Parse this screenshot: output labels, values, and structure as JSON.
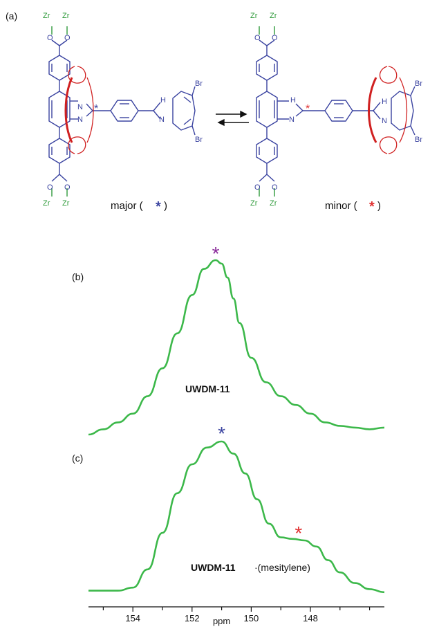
{
  "panels": {
    "a": "(a)",
    "b": "(b)",
    "c": "(c)"
  },
  "scheme": {
    "major_text": "major (",
    "major_close": ")",
    "minor_text": "minor (",
    "minor_close": ")",
    "zr": "Zr",
    "o": "O",
    "n": "N",
    "nh": "H",
    "br": "Br",
    "colors": {
      "framework": "#3a43a0",
      "crown_ether": "#d02020",
      "zirconium": "#2e9a3a"
    }
  },
  "spectra": {
    "b_label": "UWDM-11",
    "c_label": "UWDM-11",
    "c_suffix": "·(mesitylene)",
    "line_color": "#3cb84a",
    "asterisk": "*",
    "asterisk_colors": {
      "b": "#8a2a9a",
      "c_major": "#3a43a0",
      "c_minor": "#e03030"
    }
  },
  "chart_data": [
    {
      "type": "line",
      "panel": "(b)",
      "title": "UWDM-11",
      "xlabel": "ppm",
      "x_reversed": true,
      "xlim": [
        155.5,
        145.5
      ],
      "ticks": [
        154,
        152,
        150,
        148
      ],
      "x": [
        155.5,
        155.0,
        154.5,
        154.0,
        153.5,
        153.0,
        152.5,
        152.0,
        151.6,
        151.2,
        151.0,
        150.8,
        150.6,
        150.4,
        150.0,
        149.5,
        149.0,
        148.5,
        148.0,
        147.5,
        147.0,
        146.5,
        146.0,
        145.5
      ],
      "y": [
        0.0,
        0.03,
        0.07,
        0.12,
        0.22,
        0.38,
        0.58,
        0.8,
        0.95,
        1.0,
        0.98,
        0.9,
        0.78,
        0.64,
        0.44,
        0.3,
        0.22,
        0.17,
        0.12,
        0.07,
        0.05,
        0.04,
        0.03,
        0.04
      ],
      "annotations": [
        {
          "text": "*",
          "x": 151.2,
          "color": "purple"
        }
      ]
    },
    {
      "type": "line",
      "panel": "(c)",
      "title": "UWDM-11·(mesitylene)",
      "xlabel": "ppm",
      "x_reversed": true,
      "xlim": [
        155.5,
        145.5
      ],
      "ticks": [
        154,
        152,
        150,
        148
      ],
      "x": [
        155.5,
        155.0,
        154.5,
        154.0,
        153.5,
        153.0,
        152.5,
        152.0,
        151.5,
        151.0,
        150.6,
        150.2,
        149.8,
        149.4,
        149.0,
        148.6,
        148.2,
        147.8,
        147.4,
        147.0,
        146.5,
        146.0,
        145.5
      ],
      "y": [
        0.02,
        0.02,
        0.02,
        0.04,
        0.16,
        0.4,
        0.66,
        0.85,
        0.96,
        1.0,
        0.92,
        0.79,
        0.62,
        0.46,
        0.37,
        0.36,
        0.35,
        0.31,
        0.22,
        0.14,
        0.07,
        0.03,
        0.01
      ],
      "annotations": [
        {
          "text": "*",
          "x": 151.0,
          "color": "blue"
        },
        {
          "text": "*",
          "x": 148.4,
          "color": "red"
        }
      ]
    }
  ]
}
